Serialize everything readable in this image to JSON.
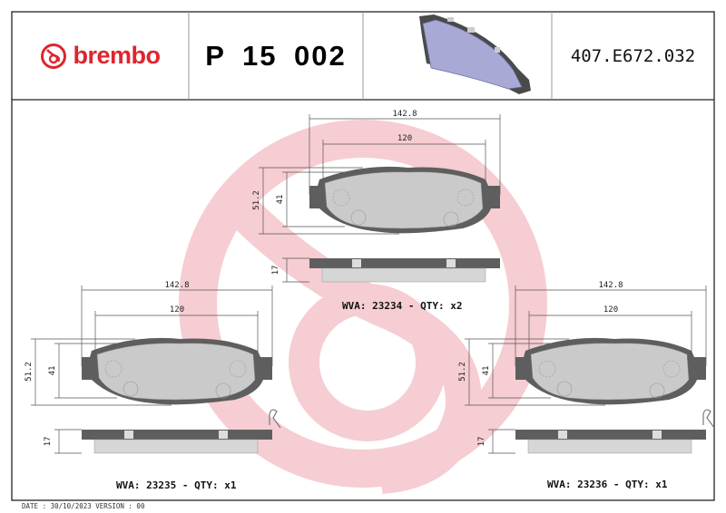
{
  "header": {
    "brand": "brembo",
    "part_number": "P 15 002",
    "reference": "407.E672.032"
  },
  "colors": {
    "brand_red": "#e0242e",
    "watermark": "#f6cdd2",
    "backing_plate": "#5e5e5e",
    "friction": "#d6d6d6"
  },
  "pads": [
    {
      "dim_width": "142.8",
      "dim_inner": "120",
      "dim_height": "51.2",
      "dim_inner_height": "41",
      "dim_thickness": "17",
      "label": "WVA: 23234 - QTY: x2",
      "clip": false
    },
    {
      "dim_width": "142.8",
      "dim_inner": "120",
      "dim_height": "51.2",
      "dim_inner_height": "41",
      "dim_thickness": "17",
      "label": "WVA: 23235 - QTY: x1",
      "clip": true
    },
    {
      "dim_width": "142.8",
      "dim_inner": "120",
      "dim_height": "51.2",
      "dim_inner_height": "41",
      "dim_thickness": "17",
      "label": "WVA: 23236 - QTY: x1",
      "clip": true
    }
  ],
  "footer": {
    "date_line": "DATE : 30/10/2023 VERSION : 00"
  }
}
